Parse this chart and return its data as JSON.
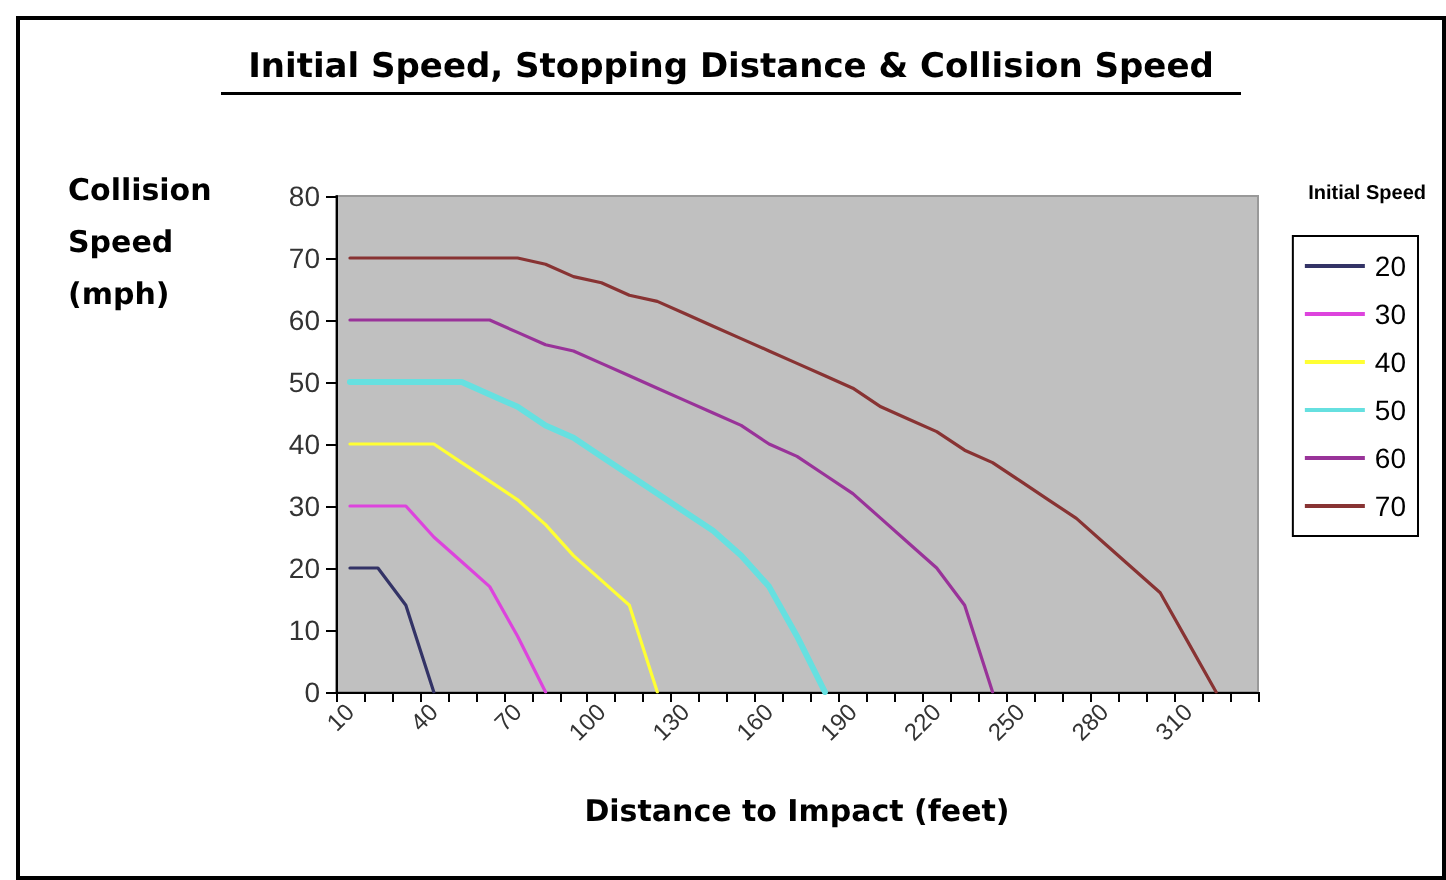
{
  "chart_data": {
    "type": "line",
    "title": "Initial Speed, Stopping Distance & Collision Speed",
    "xlabel": "Distance to Impact (feet)",
    "ylabel": "Collision Speed (mph)",
    "legend_title": "Initial Speed",
    "categories": [
      "10",
      null,
      null,
      "40",
      null,
      null,
      "70",
      null,
      null,
      "100",
      null,
      null,
      "130",
      null,
      null,
      "160",
      null,
      null,
      "190",
      null,
      null,
      "220",
      null,
      null,
      "250",
      null,
      null,
      "280",
      null,
      null,
      "310",
      null,
      null
    ],
    "series": [
      {
        "name": "20",
        "color": "#333366",
        "values": [
          20,
          20,
          14,
          0,
          null,
          null,
          null,
          null,
          null,
          null,
          null,
          null,
          null,
          null,
          null,
          null,
          null,
          null,
          null,
          null,
          null,
          null,
          null,
          null,
          null,
          null,
          null,
          null,
          null,
          null,
          null,
          null,
          null
        ]
      },
      {
        "name": "30",
        "color": "#dd44dd",
        "values": [
          30,
          30,
          30,
          25,
          21,
          17,
          9,
          0,
          null,
          null,
          null,
          null,
          null,
          null,
          null,
          null,
          null,
          null,
          null,
          null,
          null,
          null,
          null,
          null,
          null,
          null,
          null,
          null,
          null,
          null,
          null,
          null,
          null
        ]
      },
      {
        "name": "40",
        "color": "#ffff33",
        "values": [
          40,
          40,
          40,
          40,
          37,
          34,
          31,
          27,
          22,
          18,
          14,
          0,
          null,
          null,
          null,
          null,
          null,
          null,
          null,
          null,
          null,
          null,
          null,
          null,
          null,
          null,
          null,
          null,
          null,
          null,
          null,
          null,
          null
        ]
      },
      {
        "name": "50",
        "color": "#66e0e0",
        "values": [
          50,
          50,
          50,
          50,
          50,
          48,
          46,
          43,
          41,
          38,
          35,
          32,
          29,
          26,
          22,
          17,
          9,
          0,
          null,
          null,
          null,
          null,
          null,
          null,
          null,
          null,
          null,
          null,
          null,
          null,
          null,
          null,
          null
        ]
      },
      {
        "name": "60",
        "color": "#993399",
        "values": [
          60,
          60,
          60,
          60,
          60,
          60,
          58,
          56,
          55,
          53,
          51,
          49,
          47,
          45,
          43,
          40,
          38,
          35,
          32,
          28,
          24,
          20,
          14,
          0,
          null,
          null,
          null,
          null,
          null,
          null,
          null,
          null,
          null
        ]
      },
      {
        "name": "70",
        "color": "#883333",
        "values": [
          70,
          70,
          70,
          70,
          70,
          70,
          70,
          69,
          67,
          66,
          64,
          63,
          61,
          59,
          57,
          55,
          53,
          51,
          49,
          46,
          44,
          42,
          39,
          37,
          34,
          31,
          28,
          24,
          20,
          16,
          8,
          0,
          null
        ]
      }
    ],
    "ylim": [
      0,
      80
    ],
    "yticks": [
      0,
      10,
      20,
      30,
      40,
      50,
      60,
      70,
      80
    ],
    "grid": false,
    "legend": "right",
    "marker": "none",
    "line_style": "solid"
  }
}
